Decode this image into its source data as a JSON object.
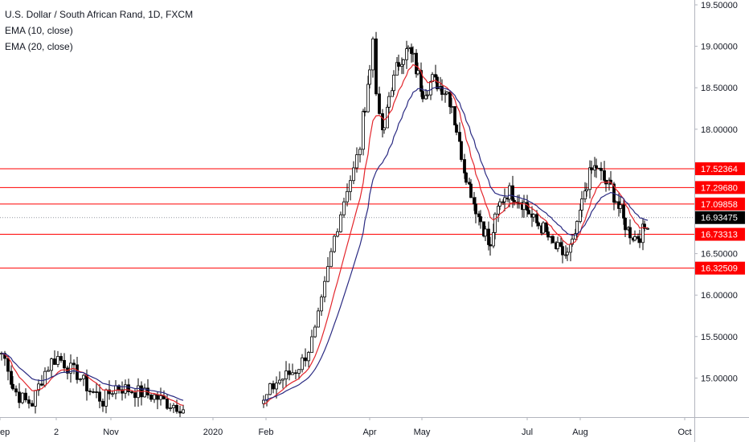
{
  "legend": {
    "title": "U.S. Dollar / South African Rand, 1D, FXCM",
    "ema10": "EMA (10, close)",
    "ema20": "EMA (20, close)"
  },
  "colors": {
    "candle": "#000000",
    "ema10": "#e3262c",
    "ema20": "#2a2a82",
    "level": "#ff0000",
    "last_price": "#000000",
    "axis_text": "#131722"
  },
  "chart_data": {
    "type": "candlestick",
    "symbol": "USDZAR",
    "timeframe": "1D",
    "ylim": [
      14.6,
      19.55
    ],
    "y_ticks": [
      "19.50000",
      "19.00000",
      "18.50000",
      "18.00000",
      "16.50000",
      "16.00000",
      "15.50000",
      "15.00000"
    ],
    "x_ticks": [
      "ep",
      "2",
      "Nov",
      "2020",
      "Feb",
      "Apr",
      "May",
      "Jul",
      "Aug",
      "Oct"
    ],
    "horizontal_levels": [
      "17.52364",
      "17.29680",
      "17.09858",
      "16.73313",
      "16.32509"
    ],
    "last_price": "16.93475",
    "price_path": [
      [
        0,
        15.3
      ],
      [
        8,
        15.15
      ],
      [
        14,
        14.88
      ],
      [
        22,
        14.78
      ],
      [
        30,
        14.72
      ],
      [
        38,
        14.7
      ],
      [
        46,
        14.9
      ],
      [
        54,
        15.08
      ],
      [
        62,
        15.2
      ],
      [
        70,
        15.25
      ],
      [
        78,
        15.18
      ],
      [
        86,
        15.1
      ],
      [
        94,
        15.05
      ],
      [
        102,
        14.95
      ],
      [
        110,
        14.85
      ],
      [
        118,
        14.8
      ],
      [
        126,
        14.72
      ],
      [
        134,
        14.82
      ],
      [
        142,
        14.9
      ],
      [
        150,
        14.88
      ],
      [
        158,
        14.86
      ],
      [
        166,
        14.84
      ],
      [
        174,
        14.82
      ],
      [
        182,
        14.8
      ],
      [
        190,
        14.78
      ],
      [
        198,
        14.74
      ],
      [
        206,
        14.7
      ],
      [
        214,
        14.68
      ],
      [
        222,
        14.66
      ],
      [
        228,
        14.62
      ],
      [
        326,
        14.7
      ],
      [
        334,
        14.85
      ],
      [
        342,
        14.95
      ],
      [
        350,
        15.0
      ],
      [
        358,
        15.05
      ],
      [
        366,
        15.1
      ],
      [
        374,
        15.2
      ],
      [
        382,
        15.35
      ],
      [
        390,
        15.55
      ],
      [
        398,
        15.9
      ],
      [
        406,
        16.3
      ],
      [
        414,
        16.7
      ],
      [
        422,
        17.0
      ],
      [
        430,
        17.3
      ],
      [
        438,
        17.5
      ],
      [
        446,
        17.8
      ],
      [
        452,
        18.3
      ],
      [
        458,
        18.7
      ],
      [
        462,
        19.1
      ],
      [
        466,
        18.5
      ],
      [
        470,
        18.1
      ],
      [
        476,
        17.95
      ],
      [
        482,
        18.4
      ],
      [
        488,
        18.6
      ],
      [
        494,
        18.8
      ],
      [
        500,
        18.9
      ],
      [
        506,
        18.95
      ],
      [
        512,
        18.85
      ],
      [
        518,
        18.65
      ],
      [
        524,
        18.45
      ],
      [
        530,
        18.5
      ],
      [
        536,
        18.6
      ],
      [
        542,
        18.55
      ],
      [
        548,
        18.5
      ],
      [
        554,
        18.45
      ],
      [
        560,
        18.3
      ],
      [
        566,
        18.0
      ],
      [
        572,
        17.7
      ],
      [
        578,
        17.45
      ],
      [
        584,
        17.25
      ],
      [
        590,
        17.05
      ],
      [
        596,
        16.9
      ],
      [
        602,
        16.75
      ],
      [
        608,
        16.55
      ],
      [
        614,
        16.9
      ],
      [
        620,
        17.1
      ],
      [
        626,
        17.2
      ],
      [
        632,
        17.25
      ],
      [
        638,
        17.2
      ],
      [
        644,
        17.15
      ],
      [
        650,
        17.1
      ],
      [
        656,
        17.0
      ],
      [
        662,
        16.9
      ],
      [
        668,
        16.85
      ],
      [
        674,
        16.8
      ],
      [
        680,
        16.7
      ],
      [
        686,
        16.6
      ],
      [
        692,
        16.55
      ],
      [
        698,
        16.5
      ],
      [
        704,
        16.48
      ],
      [
        710,
        16.6
      ],
      [
        716,
        16.8
      ],
      [
        722,
        17.1
      ],
      [
        728,
        17.35
      ],
      [
        734,
        17.5
      ],
      [
        740,
        17.55
      ],
      [
        746,
        17.45
      ],
      [
        752,
        17.35
      ],
      [
        758,
        17.3
      ],
      [
        764,
        17.15
      ],
      [
        770,
        17.0
      ],
      [
        776,
        16.85
      ],
      [
        782,
        16.75
      ],
      [
        788,
        16.7
      ],
      [
        794,
        16.72
      ],
      [
        800,
        16.8
      ],
      [
        806,
        16.93
      ]
    ]
  }
}
